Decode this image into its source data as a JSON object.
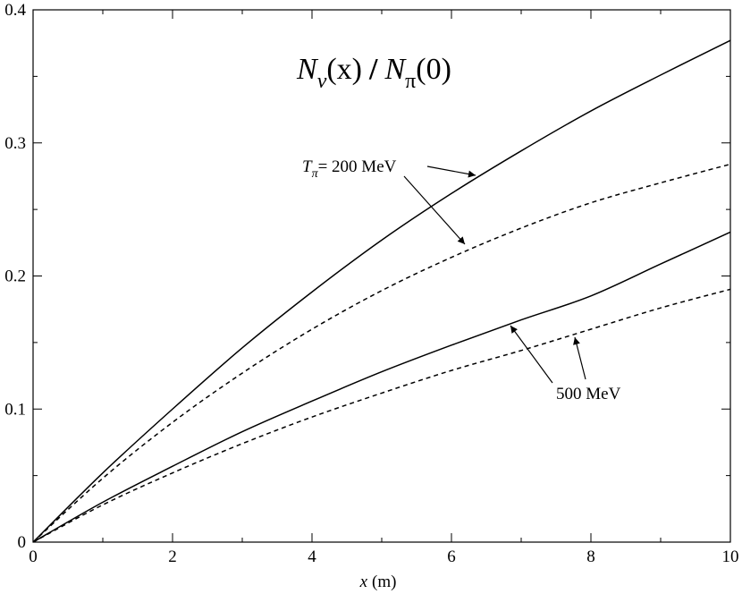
{
  "chart_data": {
    "type": "line",
    "title_parts": [
      "N",
      "ν",
      "(x)",
      "/",
      "N",
      "π",
      "(0)"
    ],
    "x_label_parts": [
      "x",
      "(m)"
    ],
    "annotations": [
      [
        "T",
        "π",
        "= 200 MeV"
      ],
      [
        "500 MeV"
      ]
    ],
    "x": [
      0,
      1,
      2,
      3,
      4,
      5,
      6,
      7,
      8,
      9,
      10
    ],
    "series": [
      {
        "color": "#000000",
        "dashed": false,
        "values": [
          0,
          0.052,
          0.1,
          0.146,
          0.188,
          0.227,
          0.262,
          0.294,
          0.324,
          0.351,
          0.377
        ]
      },
      {
        "color": "#000000",
        "dashed": true,
        "values": [
          0,
          0.048,
          0.09,
          0.127,
          0.16,
          0.189,
          0.214,
          0.236,
          0.255,
          0.27,
          0.284
        ]
      },
      {
        "color": "#000000",
        "dashed": false,
        "values": [
          0,
          0.03,
          0.057,
          0.083,
          0.106,
          0.128,
          0.148,
          0.167,
          0.185,
          0.209,
          0.233
        ]
      },
      {
        "color": "#000000",
        "dashed": true,
        "values": [
          0,
          0.028,
          0.052,
          0.074,
          0.094,
          0.112,
          0.129,
          0.144,
          0.16,
          0.176,
          0.19
        ]
      }
    ],
    "xlim": [
      0,
      10
    ],
    "xticks": [
      0,
      2,
      4,
      6,
      8,
      10
    ],
    "xminor": [
      1,
      3,
      5,
      7,
      9
    ],
    "ylim": [
      0,
      0.4
    ],
    "yticks": [
      0,
      0.1,
      0.2,
      0.3,
      0.4
    ],
    "yminor": [
      0.05,
      0.15,
      0.25,
      0.35
    ]
  }
}
